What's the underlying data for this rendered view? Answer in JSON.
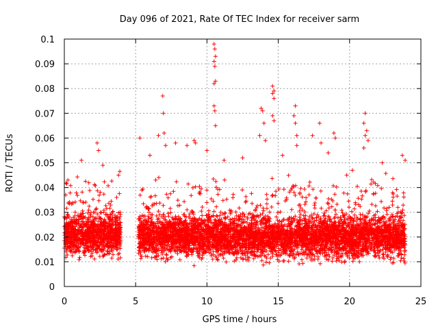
{
  "chart_data": {
    "type": "scatter",
    "title": "Day 096 of 2021, Rate Of TEC Index for receiver sarm",
    "xlabel": "GPS time / hours",
    "ylabel": "ROTI / TECUs",
    "xlim": [
      0,
      25
    ],
    "ylim": [
      0,
      0.1
    ],
    "x_ticks": [
      0,
      5,
      10,
      15,
      20,
      25
    ],
    "x_tick_labels": [
      "0",
      "5",
      "10",
      "15",
      "20",
      "25"
    ],
    "y_ticks": [
      0,
      0.01,
      0.02,
      0.03,
      0.04,
      0.05,
      0.06,
      0.07,
      0.08,
      0.09,
      0.1
    ],
    "y_tick_labels": [
      "0",
      "0.01",
      "0.02",
      "0.03",
      "0.04",
      "0.05",
      "0.06",
      "0.07",
      "0.08",
      "0.09",
      "0.1"
    ],
    "grid": true,
    "marker": "plus",
    "color": "#ff0000",
    "segments": [
      {
        "x_start": 0.0,
        "x_end": 3.95,
        "median": 0.021
      },
      {
        "x_start": 5.2,
        "x_end": 23.9,
        "median": 0.02
      }
    ],
    "notable_points": [
      {
        "x": 0.1,
        "y": 0.037
      },
      {
        "x": 0.25,
        "y": 0.043
      },
      {
        "x": 1.2,
        "y": 0.051
      },
      {
        "x": 2.3,
        "y": 0.058
      },
      {
        "x": 2.4,
        "y": 0.055
      },
      {
        "x": 2.7,
        "y": 0.049
      },
      {
        "x": 3.8,
        "y": 0.045
      },
      {
        "x": 5.3,
        "y": 0.06
      },
      {
        "x": 6.0,
        "y": 0.053
      },
      {
        "x": 6.6,
        "y": 0.061
      },
      {
        "x": 6.9,
        "y": 0.077
      },
      {
        "x": 6.95,
        "y": 0.07
      },
      {
        "x": 7.0,
        "y": 0.062
      },
      {
        "x": 7.1,
        "y": 0.057
      },
      {
        "x": 7.8,
        "y": 0.058
      },
      {
        "x": 8.6,
        "y": 0.057
      },
      {
        "x": 9.1,
        "y": 0.059
      },
      {
        "x": 9.2,
        "y": 0.058
      },
      {
        "x": 10.0,
        "y": 0.055
      },
      {
        "x": 10.5,
        "y": 0.098
      },
      {
        "x": 10.55,
        "y": 0.096
      },
      {
        "x": 10.6,
        "y": 0.093
      },
      {
        "x": 10.5,
        "y": 0.091
      },
      {
        "x": 10.55,
        "y": 0.089
      },
      {
        "x": 10.6,
        "y": 0.083
      },
      {
        "x": 10.5,
        "y": 0.082
      },
      {
        "x": 10.5,
        "y": 0.073
      },
      {
        "x": 10.55,
        "y": 0.071
      },
      {
        "x": 10.6,
        "y": 0.065
      },
      {
        "x": 11.2,
        "y": 0.051
      },
      {
        "x": 12.5,
        "y": 0.052
      },
      {
        "x": 13.8,
        "y": 0.072
      },
      {
        "x": 13.9,
        "y": 0.071
      },
      {
        "x": 14.0,
        "y": 0.066
      },
      {
        "x": 13.7,
        "y": 0.061
      },
      {
        "x": 14.1,
        "y": 0.059
      },
      {
        "x": 14.6,
        "y": 0.081
      },
      {
        "x": 14.7,
        "y": 0.079
      },
      {
        "x": 14.6,
        "y": 0.078
      },
      {
        "x": 14.7,
        "y": 0.076
      },
      {
        "x": 14.6,
        "y": 0.069
      },
      {
        "x": 14.7,
        "y": 0.067
      },
      {
        "x": 15.3,
        "y": 0.053
      },
      {
        "x": 16.2,
        "y": 0.073
      },
      {
        "x": 16.1,
        "y": 0.069
      },
      {
        "x": 16.2,
        "y": 0.066
      },
      {
        "x": 16.3,
        "y": 0.061
      },
      {
        "x": 16.3,
        "y": 0.057
      },
      {
        "x": 17.4,
        "y": 0.061
      },
      {
        "x": 17.9,
        "y": 0.066
      },
      {
        "x": 18.0,
        "y": 0.058
      },
      {
        "x": 18.5,
        "y": 0.054
      },
      {
        "x": 18.9,
        "y": 0.062
      },
      {
        "x": 19.0,
        "y": 0.06
      },
      {
        "x": 19.8,
        "y": 0.045
      },
      {
        "x": 20.2,
        "y": 0.047
      },
      {
        "x": 21.1,
        "y": 0.07
      },
      {
        "x": 21.0,
        "y": 0.066
      },
      {
        "x": 21.2,
        "y": 0.063
      },
      {
        "x": 21.1,
        "y": 0.061
      },
      {
        "x": 21.3,
        "y": 0.059
      },
      {
        "x": 21.0,
        "y": 0.056
      },
      {
        "x": 22.3,
        "y": 0.05
      },
      {
        "x": 23.7,
        "y": 0.053
      },
      {
        "x": 23.9,
        "y": 0.051
      }
    ]
  }
}
